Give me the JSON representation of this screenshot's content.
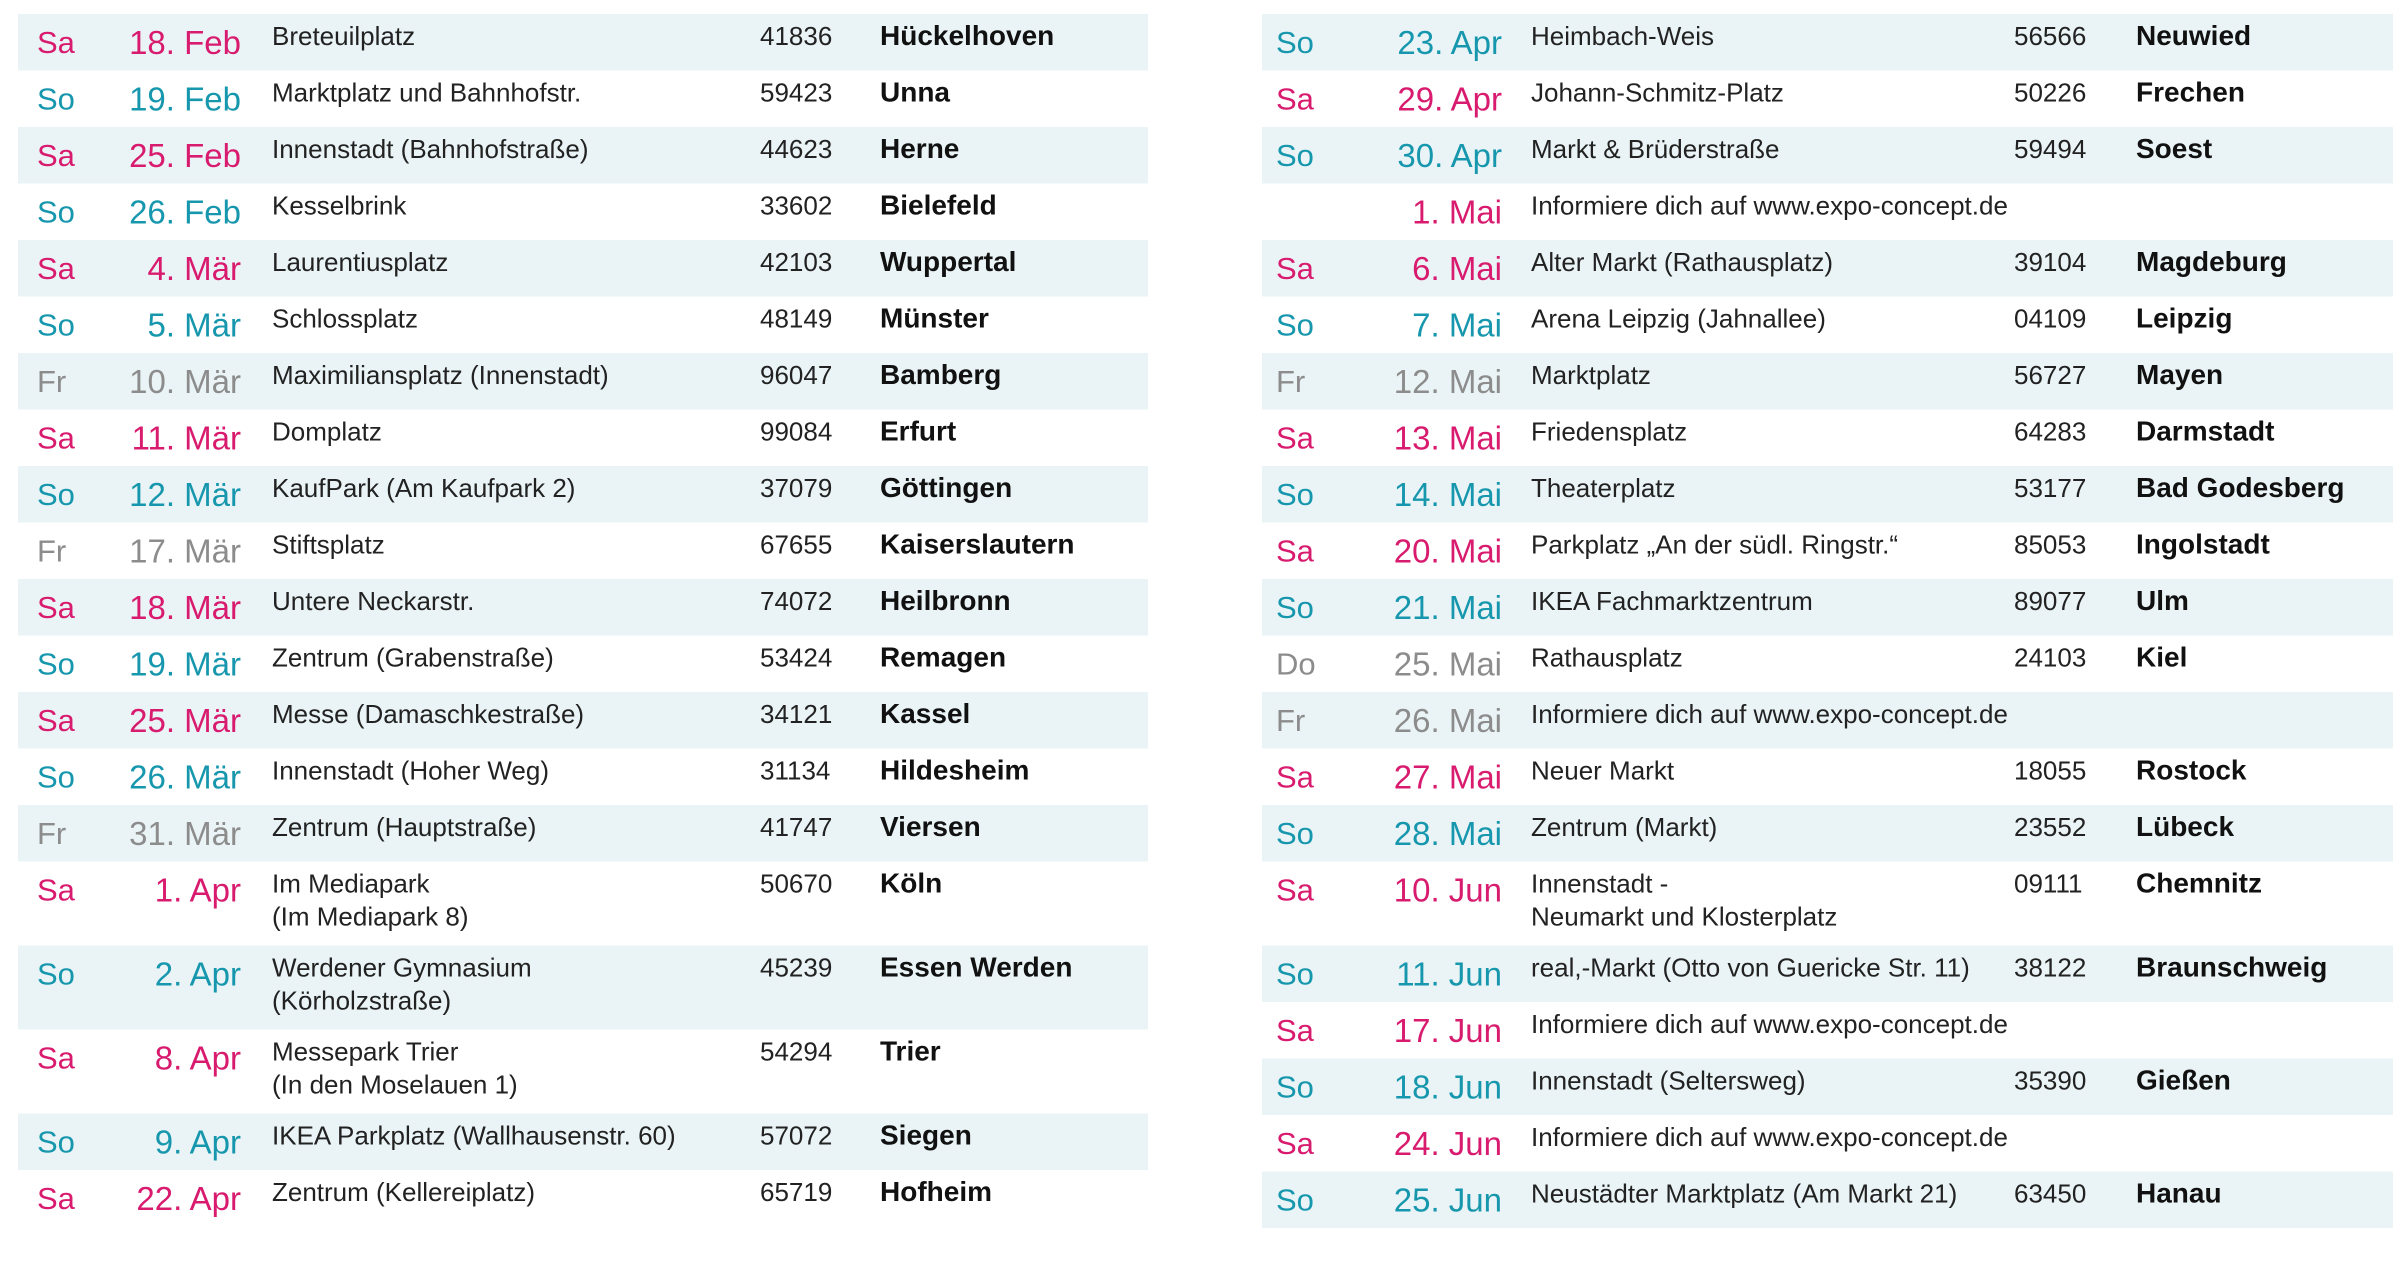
{
  "colors": {
    "sa": "#d81b6e",
    "so": "#1797ad",
    "gray": "#8c8c8c",
    "shade": "#eaf4f6"
  },
  "left": {
    "rows": [
      {
        "day": "Sa",
        "date": "18. Feb",
        "street": [
          "Breteuilplatz"
        ],
        "zip": "41836",
        "city": "Hückelhoven",
        "color": "sa"
      },
      {
        "day": "So",
        "date": "19. Feb",
        "street": [
          "Marktplatz und Bahnhofstr."
        ],
        "zip": "59423",
        "city": "Unna",
        "color": "so"
      },
      {
        "day": "Sa",
        "date": "25. Feb",
        "street": [
          "Innenstadt (Bahnhofstraße)"
        ],
        "zip": "44623",
        "city": "Herne",
        "color": "sa"
      },
      {
        "day": "So",
        "date": "26. Feb",
        "street": [
          "Kesselbrink"
        ],
        "zip": "33602",
        "city": "Bielefeld",
        "color": "so"
      },
      {
        "day": "Sa",
        "date": "4. Mär",
        "street": [
          "Laurentiusplatz"
        ],
        "zip": "42103",
        "city": "Wuppertal",
        "color": "sa"
      },
      {
        "day": "So",
        "date": "5. Mär",
        "street": [
          "Schlossplatz"
        ],
        "zip": "48149",
        "city": "Münster",
        "color": "so"
      },
      {
        "day": "Fr",
        "date": "10. Mär",
        "street": [
          "Maximiliansplatz (Innenstadt)"
        ],
        "zip": "96047",
        "city": "Bamberg",
        "color": "gray"
      },
      {
        "day": "Sa",
        "date": "11. Mär",
        "street": [
          "Domplatz"
        ],
        "zip": "99084",
        "city": "Erfurt",
        "color": "sa"
      },
      {
        "day": "So",
        "date": "12. Mär",
        "street": [
          "KaufPark (Am Kaufpark 2)"
        ],
        "zip": "37079",
        "city": "Göttingen",
        "color": "so"
      },
      {
        "day": "Fr",
        "date": "17. Mär",
        "street": [
          "Stiftsplatz"
        ],
        "zip": "67655",
        "city": "Kaiserslautern",
        "color": "gray"
      },
      {
        "day": "Sa",
        "date": "18. Mär",
        "street": [
          "Untere Neckarstr."
        ],
        "zip": "74072",
        "city": "Heilbronn",
        "color": "sa"
      },
      {
        "day": "So",
        "date": "19. Mär",
        "street": [
          "Zentrum (Grabenstraße)"
        ],
        "zip": "53424",
        "city": "Remagen",
        "color": "so"
      },
      {
        "day": "Sa",
        "date": "25. Mär",
        "street": [
          "Messe (Damaschkestraße)"
        ],
        "zip": "34121",
        "city": "Kassel",
        "color": "sa"
      },
      {
        "day": "So",
        "date": "26. Mär",
        "street": [
          "Innenstadt (Hoher Weg)"
        ],
        "zip": "31134",
        "city": "Hildesheim",
        "color": "so"
      },
      {
        "day": "Fr",
        "date": "31. Mär",
        "street": [
          "Zentrum (Hauptstraße)"
        ],
        "zip": "41747",
        "city": "Viersen",
        "color": "gray"
      },
      {
        "day": "Sa",
        "date": "1. Apr",
        "street": [
          "Im Mediapark",
          "(Im Mediapark 8)"
        ],
        "zip": "50670",
        "city": "Köln",
        "color": "sa"
      },
      {
        "day": "So",
        "date": "2. Apr",
        "street": [
          "Werdener Gymnasium",
          "(Körholzstraße)"
        ],
        "zip": "45239",
        "city": "Essen Werden",
        "color": "so"
      },
      {
        "day": "Sa",
        "date": "8. Apr",
        "street": [
          "Messepark Trier",
          "(In den Moselauen 1)"
        ],
        "zip": "54294",
        "city": "Trier",
        "color": "sa"
      },
      {
        "day": "So",
        "date": "9. Apr",
        "street": [
          "IKEA Parkplatz (Wallhausenstr. 60)"
        ],
        "zip": "57072",
        "city": "Siegen",
        "color": "so"
      },
      {
        "day": "Sa",
        "date": "22. Apr",
        "street": [
          "Zentrum (Kellereiplatz)"
        ],
        "zip": "65719",
        "city": "Hofheim",
        "color": "sa"
      }
    ]
  },
  "right": {
    "rows": [
      {
        "day": "So",
        "date": "23. Apr",
        "street": [
          "Heimbach-Weis"
        ],
        "zip": "56566",
        "city": "Neuwied",
        "color": "so"
      },
      {
        "day": "Sa",
        "date": "29. Apr",
        "street": [
          "Johann-Schmitz-Platz"
        ],
        "zip": "50226",
        "city": "Frechen",
        "color": "sa"
      },
      {
        "day": "So",
        "date": "30. Apr",
        "street": [
          "Markt & Brüderstraße"
        ],
        "zip": "59494",
        "city": "Soest",
        "color": "so"
      },
      {
        "date": "1. Mai",
        "street": [
          "Informiere dich auf www.expo-concept.de"
        ],
        "color": "sa"
      },
      {
        "day": "Sa",
        "date": "6. Mai",
        "street": [
          "Alter Markt (Rathausplatz)"
        ],
        "zip": "39104",
        "city": "Magdeburg",
        "color": "sa"
      },
      {
        "day": "So",
        "date": "7. Mai",
        "street": [
          "Arena Leipzig (Jahnallee)"
        ],
        "zip": "04109",
        "city": "Leipzig",
        "color": "so"
      },
      {
        "day": "Fr",
        "date": "12. Mai",
        "street": [
          "Marktplatz"
        ],
        "zip": "56727",
        "city": "Mayen",
        "color": "gray"
      },
      {
        "day": "Sa",
        "date": "13. Mai",
        "street": [
          "Friedensplatz"
        ],
        "zip": "64283",
        "city": "Darmstadt",
        "color": "sa"
      },
      {
        "day": "So",
        "date": "14. Mai",
        "street": [
          "Theaterplatz"
        ],
        "zip": "53177",
        "city": "Bad Godesberg",
        "color": "so"
      },
      {
        "day": "Sa",
        "date": "20. Mai",
        "street": [
          "Parkplatz „An der südl. Ringstr.“"
        ],
        "zip": "85053",
        "city": "Ingolstadt",
        "color": "sa"
      },
      {
        "day": "So",
        "date": "21. Mai",
        "street": [
          "IKEA Fachmarktzentrum"
        ],
        "zip": "89077",
        "city": "Ulm",
        "color": "so"
      },
      {
        "day": "Do",
        "date": "25. Mai",
        "street": [
          "Rathausplatz"
        ],
        "zip": "24103",
        "city": "Kiel",
        "color": "gray"
      },
      {
        "day": "Fr",
        "date": "26. Mai",
        "street": [
          "Informiere dich auf www.expo-concept.de"
        ],
        "color": "gray"
      },
      {
        "day": "Sa",
        "date": "27. Mai",
        "street": [
          "Neuer Markt"
        ],
        "zip": "18055",
        "city": "Rostock",
        "color": "sa"
      },
      {
        "day": "So",
        "date": "28. Mai",
        "street": [
          "Zentrum (Markt)"
        ],
        "zip": "23552",
        "city": "Lübeck",
        "color": "so"
      },
      {
        "day": "Sa",
        "date": "10. Jun",
        "street": [
          "Innenstadt -",
          "Neumarkt und Klosterplatz"
        ],
        "zip": "09111",
        "city": "Chemnitz",
        "color": "sa"
      },
      {
        "day": "So",
        "date": "11. Jun",
        "street": [
          "real,-Markt (Otto von Guericke Str. 11)"
        ],
        "zip": "38122",
        "city": "Braunschweig",
        "color": "so"
      },
      {
        "day": "Sa",
        "date": "17. Jun",
        "street": [
          "Informiere dich auf www.expo-concept.de"
        ],
        "color": "sa"
      },
      {
        "day": "So",
        "date": "18. Jun",
        "street": [
          "Innenstadt (Seltersweg)"
        ],
        "zip": "35390",
        "city": "Gießen",
        "color": "so"
      },
      {
        "day": "Sa",
        "date": "24. Jun",
        "street": [
          "Informiere dich auf www.expo-concept.de"
        ],
        "color": "sa"
      },
      {
        "day": "So",
        "date": "25. Jun",
        "street": [
          "Neustädter Marktplatz (Am Markt 21)"
        ],
        "zip": "63450",
        "city": "Hanau",
        "color": "so"
      }
    ]
  }
}
